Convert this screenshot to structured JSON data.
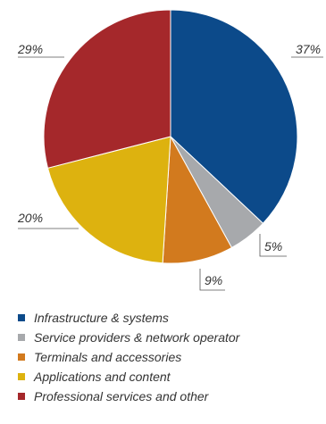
{
  "chart_data": {
    "type": "pie",
    "title": "",
    "categories": [
      "Infrastructure & systems",
      "Service providers & network operator",
      "Terminals and accessories",
      "Applications and content",
      "Professional services and other"
    ],
    "values": [
      37,
      5,
      9,
      20,
      29
    ],
    "value_labels": [
      "37%",
      "5%",
      "9%",
      "20%",
      "29%"
    ],
    "colors": [
      "#0c4a8a",
      "#a7a9ac",
      "#d27a1e",
      "#ddb20f",
      "#a5282b"
    ],
    "start_angle": "12 o'clock",
    "direction": "clockwise",
    "legend_position": "bottom-left"
  }
}
